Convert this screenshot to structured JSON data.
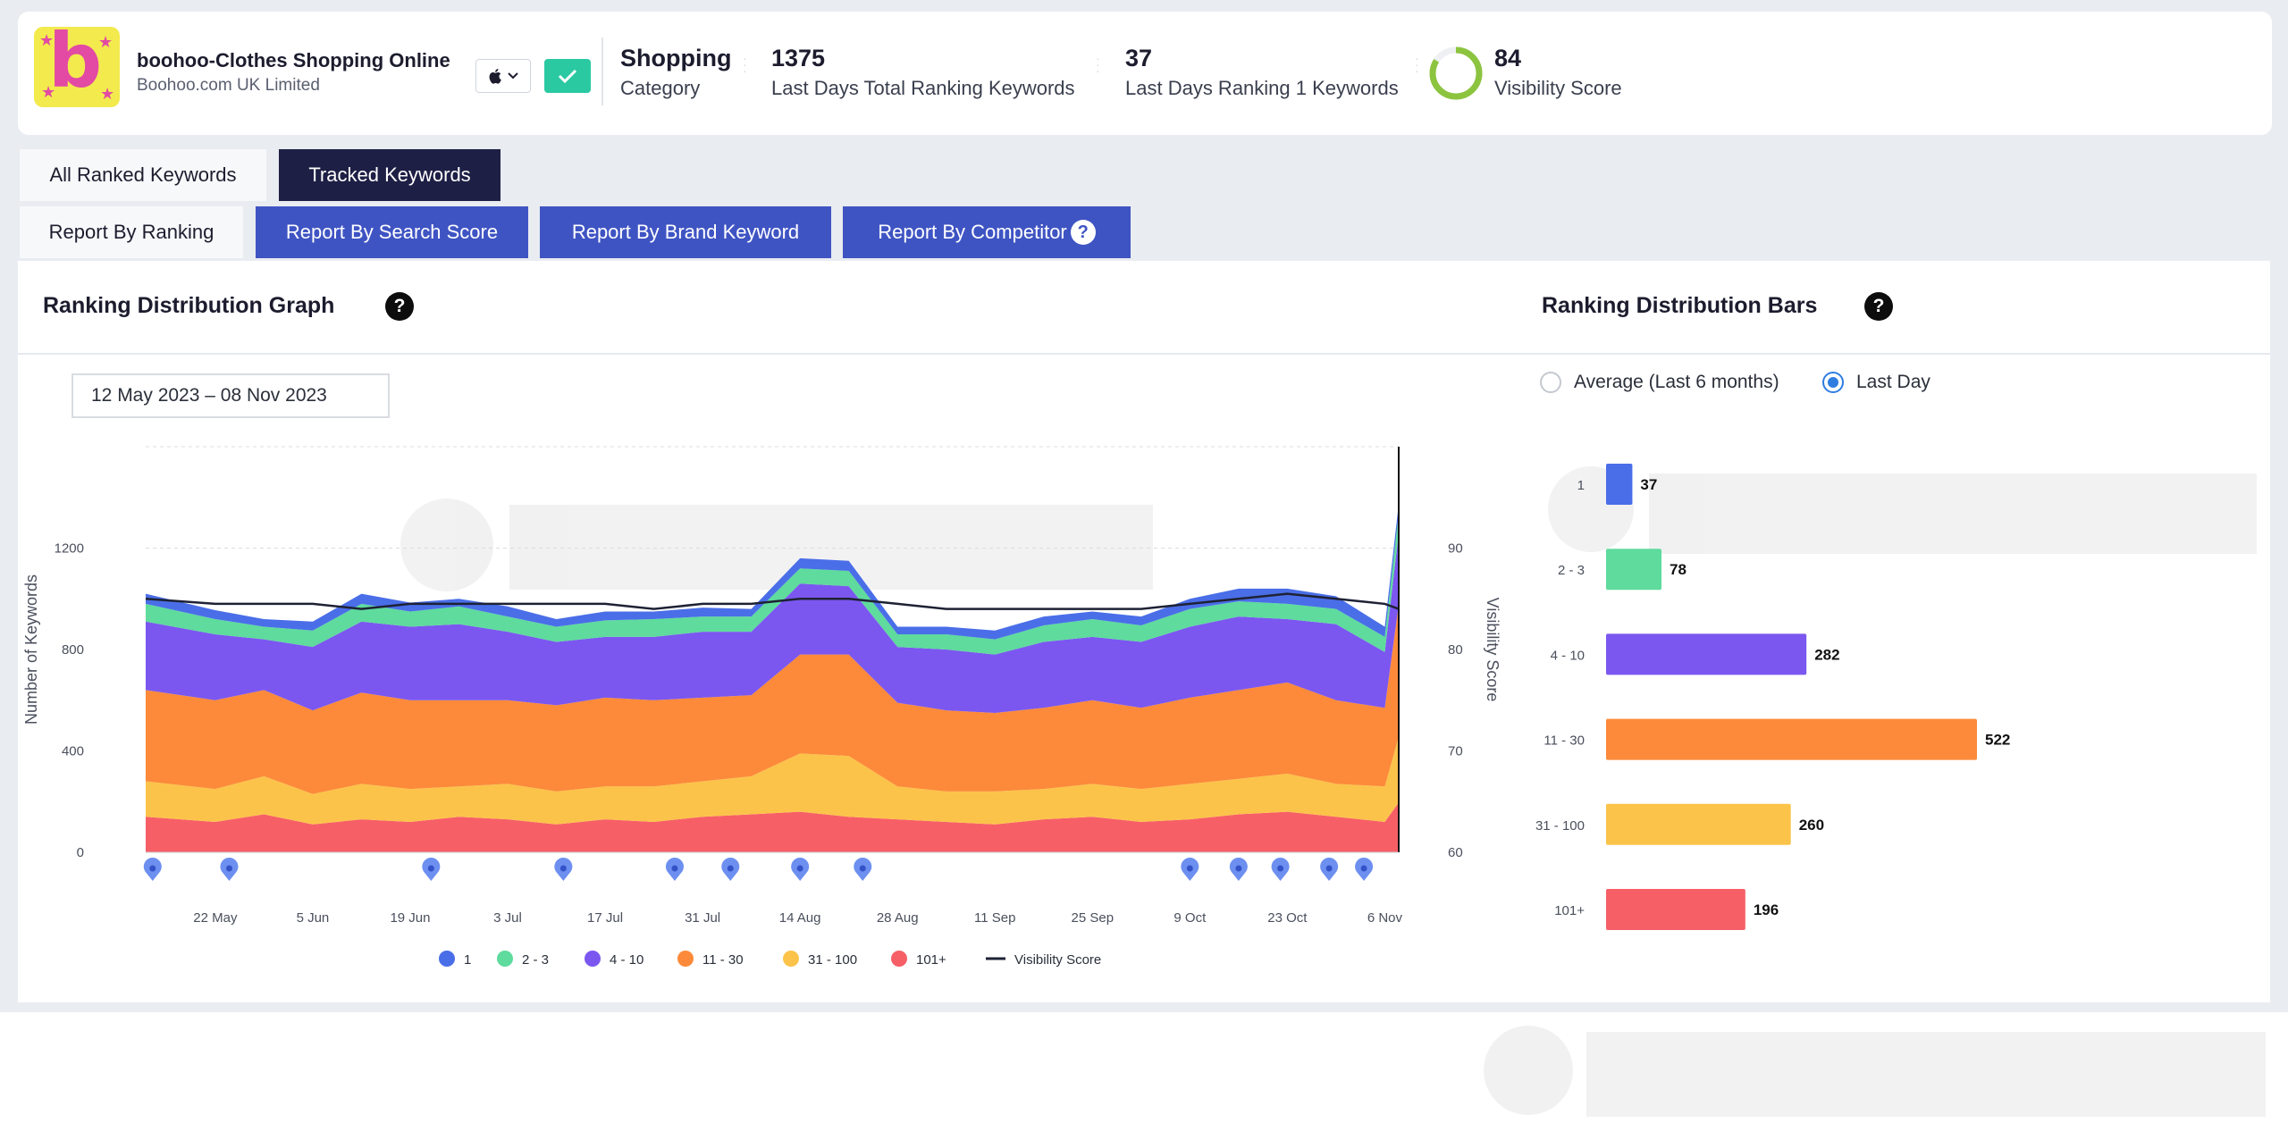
{
  "app": {
    "name": "boohoo-Clothes Shopping Online",
    "developer": "Boohoo.com UK Limited",
    "icon_letter": "b",
    "os_icon": "apple-icon",
    "check_icon": "check-icon"
  },
  "stats": {
    "category_value": "Shopping",
    "category_label": "Category",
    "total_value": "1375",
    "total_label": "Last Days Total Ranking Keywords",
    "rank1_value": "37",
    "rank1_label": "Last Days Ranking 1 Keywords",
    "visibility_value": "84",
    "visibility_label": "Visibility Score",
    "visibility_ring_fraction": 0.84
  },
  "tabs": {
    "all_ranked": "All Ranked Keywords",
    "tracked": "Tracked Keywords"
  },
  "report_tabs": {
    "by_ranking": "Report By Ranking",
    "by_search_score": "Report By Search Score",
    "by_brand_keyword": "Report By Brand Keyword",
    "by_competitor": "Report By Competitor",
    "help": "?"
  },
  "graph": {
    "title": "Ranking Distribution Graph",
    "help": "?",
    "date_range": "12 May 2023 – 08 Nov 2023"
  },
  "bars_panel": {
    "title": "Ranking Distribution Bars",
    "help": "?",
    "radio_average": "Average (Last 6 months)",
    "radio_last_day": "Last Day",
    "selected": "Last Day"
  },
  "colors": {
    "r1": "#4a6ee8",
    "r2_3": "#5edb9d",
    "r4_10": "#7b57f0",
    "r11_30": "#fc8a3a",
    "r31_100": "#fcc34a",
    "r101": "#f75f67",
    "visibility": "#1e2235",
    "marker": "#6d8ff0",
    "tab_dark": "#1e1f45",
    "tab_blue": "#3f54c3",
    "accent_green": "#2bc9a2",
    "ring_green": "#8cc43f"
  },
  "chart_data": [
    {
      "type": "area",
      "stacked": true,
      "x": [
        "12 May",
        "22 May",
        "29 May",
        "5 Jun",
        "12 Jun",
        "19 Jun",
        "26 Jun",
        "3 Jul",
        "10 Jul",
        "17 Jul",
        "24 Jul",
        "31 Jul",
        "7 Aug",
        "14 Aug",
        "21 Aug",
        "28 Aug",
        "4 Sep",
        "11 Sep",
        "18 Sep",
        "25 Sep",
        "2 Oct",
        "9 Oct",
        "16 Oct",
        "23 Oct",
        "30 Oct",
        "6 Nov",
        "8 Nov"
      ],
      "x_tick_labels": [
        "22 May",
        "5 Jun",
        "19 Jun",
        "3 Jul",
        "17 Jul",
        "31 Jul",
        "14 Aug",
        "28 Aug",
        "11 Sep",
        "25 Sep",
        "9 Oct",
        "23 Oct",
        "6 Nov"
      ],
      "series": [
        {
          "name": "101+",
          "values": [
            140,
            120,
            150,
            110,
            130,
            120,
            140,
            130,
            110,
            130,
            120,
            140,
            150,
            160,
            140,
            130,
            120,
            110,
            130,
            140,
            120,
            130,
            150,
            160,
            140,
            120,
            196
          ]
        },
        {
          "name": "31 - 100",
          "values": [
            140,
            130,
            150,
            120,
            140,
            130,
            120,
            140,
            130,
            130,
            140,
            140,
            150,
            230,
            240,
            130,
            120,
            130,
            120,
            130,
            130,
            140,
            140,
            150,
            130,
            140,
            260
          ]
        },
        {
          "name": "11 - 30",
          "values": [
            360,
            350,
            340,
            330,
            360,
            350,
            340,
            330,
            340,
            350,
            340,
            330,
            320,
            390,
            400,
            330,
            320,
            310,
            320,
            330,
            320,
            340,
            350,
            360,
            330,
            310,
            522
          ]
        },
        {
          "name": "4 - 10",
          "values": [
            270,
            260,
            200,
            250,
            280,
            290,
            300,
            270,
            250,
            240,
            250,
            260,
            250,
            280,
            270,
            220,
            240,
            230,
            260,
            250,
            260,
            280,
            290,
            250,
            300,
            220,
            282
          ]
        },
        {
          "name": "2 - 3",
          "values": [
            70,
            60,
            50,
            65,
            70,
            60,
            70,
            60,
            60,
            65,
            70,
            60,
            60,
            60,
            60,
            50,
            60,
            60,
            65,
            70,
            65,
            70,
            60,
            60,
            60,
            60,
            78
          ]
        },
        {
          "name": "1",
          "values": [
            40,
            35,
            30,
            35,
            40,
            35,
            30,
            40,
            30,
            35,
            30,
            35,
            30,
            40,
            40,
            30,
            30,
            35,
            35,
            30,
            35,
            40,
            50,
            60,
            50,
            40,
            37
          ]
        }
      ],
      "line_series": {
        "name": "Visibility Score",
        "values": [
          85,
          84.5,
          84.5,
          84.5,
          84,
          84.5,
          84.5,
          84.5,
          84.5,
          84.5,
          84,
          84.5,
          84.5,
          85,
          85,
          84.5,
          84,
          84,
          84,
          84,
          84,
          84.5,
          85,
          85.5,
          85,
          84.5,
          84
        ]
      },
      "markers_at": [
        "13 May",
        "24 May",
        "22 Jun",
        "11 Jul",
        "27 Jul",
        "4 Aug",
        "14 Aug",
        "23 Aug",
        "9 Oct",
        "16 Oct",
        "22 Oct",
        "29 Oct",
        "3 Nov"
      ],
      "ylabel": "Number of Keywords",
      "y2label": "Visibility Score",
      "y_ticks": [
        0,
        400,
        800,
        1200
      ],
      "y2_ticks": [
        60,
        70,
        80,
        90
      ],
      "ylim": [
        0,
        1600
      ],
      "y2lim": [
        60,
        100
      ],
      "legend": [
        "1",
        "2 - 3",
        "4 - 10",
        "11 - 30",
        "31 - 100",
        "101+",
        "Visibility Score"
      ],
      "legend_position": "bottom",
      "grid": true
    },
    {
      "type": "bar",
      "orientation": "horizontal",
      "categories": [
        "1",
        "2 - 3",
        "4 - 10",
        "11 - 30",
        "31 - 100",
        "101+"
      ],
      "values": [
        37,
        78,
        282,
        522,
        260,
        196
      ]
    }
  ]
}
